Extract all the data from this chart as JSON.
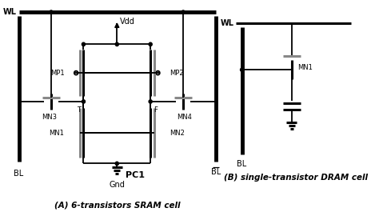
{
  "bg_color": "#ffffff",
  "line_color": "#000000",
  "gray_color": "#888888",
  "lw_thick": 2.2,
  "lw_thin": 1.3,
  "lw_bus": 3.5,
  "title_A": "(A) 6-transistors SRAM cell",
  "title_B": "(B) single-transistor DRAM cell",
  "WL_A": "WL",
  "BL_A": "BL",
  "BLbar_A": "BL",
  "Vdd_lbl": "Vdd",
  "Gnd_lbl": "Gnd",
  "PC1_lbl": "PC1",
  "MP1_lbl": "MP1",
  "MP2_lbl": "MP2",
  "MN1_lbl": "MN1",
  "MN2_lbl": "MN2",
  "MN3_lbl": "MN3",
  "MN4_lbl": "MN4",
  "T_lbl": "T",
  "F_lbl": "F",
  "WL_B": "WL",
  "BL_B": "BL",
  "MN1B_lbl": "MN1"
}
